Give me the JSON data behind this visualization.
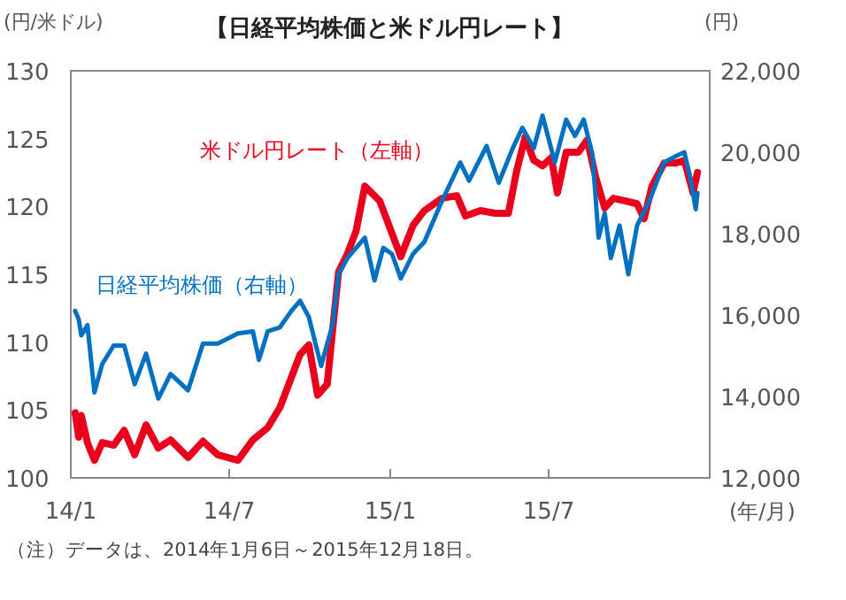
{
  "chart_data": {
    "type": "line",
    "title": "【日経平均株価と米ドル円レート】",
    "ylabel": "(円/米ドル)",
    "y2label": "(円)",
    "xlabel": "(年/月)",
    "xlim": [
      "2014-01-01",
      "2016-01-01"
    ],
    "xticks": [
      {
        "value": "2014-01-01",
        "label": "14/1"
      },
      {
        "value": "2014-07-01",
        "label": "14/7"
      },
      {
        "value": "2015-01-01",
        "label": "15/1"
      },
      {
        "value": "2015-07-01",
        "label": "15/7"
      }
    ],
    "ylim": [
      100,
      130
    ],
    "yticks": [
      100,
      105,
      110,
      115,
      120,
      125,
      130
    ],
    "y2lim": [
      12000,
      22000
    ],
    "y2ticks": [
      {
        "value": 12000,
        "label": "12,000"
      },
      {
        "value": 14000,
        "label": "14,000"
      },
      {
        "value": 16000,
        "label": "16,000"
      },
      {
        "value": 18000,
        "label": "18,000"
      },
      {
        "value": 20000,
        "label": "20,000"
      },
      {
        "value": 22000,
        "label": "22,000"
      }
    ],
    "legend": false,
    "grid": false,
    "annotations": [
      "（注）データは、2014年1月6日～2015年12月18日。"
    ],
    "series": [
      {
        "name": "米ドル円レート（左軸）",
        "color": "#e8001c",
        "axis": "y",
        "x": [
          "2014-01-06",
          "2014-01-10",
          "2014-01-13",
          "2014-01-20",
          "2014-01-28",
          "2014-02-06",
          "2014-02-19",
          "2014-03-03",
          "2014-03-15",
          "2014-03-28",
          "2014-04-11",
          "2014-04-25",
          "2014-05-15",
          "2014-06-01",
          "2014-06-18",
          "2014-07-11",
          "2014-07-28",
          "2014-08-14",
          "2014-08-28",
          "2014-09-10",
          "2014-09-20",
          "2014-09-30",
          "2014-10-10",
          "2014-10-21",
          "2014-10-27",
          "2014-11-03",
          "2014-11-13",
          "2014-11-23",
          "2014-12-03",
          "2014-12-20",
          "2015-01-13",
          "2015-01-27",
          "2015-02-09",
          "2015-03-01",
          "2015-03-18",
          "2015-03-28",
          "2015-04-14",
          "2015-05-01",
          "2015-05-16",
          "2015-05-25",
          "2015-06-04",
          "2015-06-14",
          "2015-06-24",
          "2015-07-04",
          "2015-07-11",
          "2015-07-21",
          "2015-08-04",
          "2015-08-14",
          "2015-08-24",
          "2015-09-03",
          "2015-09-13",
          "2015-09-27",
          "2015-10-10",
          "2015-10-18",
          "2015-10-27",
          "2015-11-10",
          "2015-11-23",
          "2015-12-03",
          "2015-12-13",
          "2015-12-18"
        ],
        "values": [
          104.8,
          103.0,
          104.6,
          102.6,
          101.3,
          102.6,
          102.4,
          103.5,
          101.7,
          103.9,
          102.2,
          102.8,
          101.5,
          102.7,
          101.7,
          101.3,
          102.8,
          103.7,
          105.2,
          107.4,
          109.1,
          109.8,
          106.1,
          106.9,
          110.8,
          115.2,
          116.5,
          118.2,
          121.5,
          120.4,
          116.3,
          118.6,
          119.7,
          120.6,
          120.8,
          119.3,
          119.7,
          119.5,
          119.5,
          122.5,
          125.1,
          123.4,
          123.0,
          123.6,
          121.0,
          124.0,
          124.0,
          124.9,
          122.1,
          119.9,
          120.6,
          120.4,
          120.2,
          119.1,
          121.5,
          123.2,
          123.2,
          123.4,
          121.0,
          122.5
        ]
      },
      {
        "name": "日経平均株価（右軸）",
        "color": "#0070c0",
        "axis": "y2",
        "x": [
          "2014-01-06",
          "2014-01-10",
          "2014-01-13",
          "2014-01-20",
          "2014-01-28",
          "2014-02-06",
          "2014-02-19",
          "2014-03-03",
          "2014-03-15",
          "2014-03-28",
          "2014-04-11",
          "2014-04-25",
          "2014-05-15",
          "2014-06-01",
          "2014-06-18",
          "2014-07-11",
          "2014-07-28",
          "2014-08-04",
          "2014-08-14",
          "2014-08-28",
          "2014-09-10",
          "2014-09-20",
          "2014-09-30",
          "2014-10-14",
          "2014-10-21",
          "2014-10-27",
          "2014-11-03",
          "2014-11-13",
          "2014-11-23",
          "2014-12-03",
          "2014-12-14",
          "2014-12-24",
          "2015-01-03",
          "2015-01-13",
          "2015-01-27",
          "2015-02-09",
          "2015-03-01",
          "2015-03-22",
          "2015-04-01",
          "2015-04-21",
          "2015-05-05",
          "2015-05-21",
          "2015-06-01",
          "2015-06-14",
          "2015-06-24",
          "2015-07-08",
          "2015-07-21",
          "2015-07-31",
          "2015-08-10",
          "2015-08-20",
          "2015-08-27",
          "2015-09-03",
          "2015-09-10",
          "2015-09-20",
          "2015-09-30",
          "2015-10-10",
          "2015-10-24",
          "2015-11-10",
          "2015-11-23",
          "2015-12-03",
          "2015-12-10",
          "2015-12-16",
          "2015-12-18"
        ],
        "values": [
          16100,
          15900,
          15500,
          15750,
          14100,
          14800,
          15250,
          15250,
          14300,
          15050,
          13950,
          14550,
          14150,
          15300,
          15300,
          15550,
          15600,
          14900,
          15600,
          15700,
          16100,
          16350,
          15950,
          14750,
          15300,
          15750,
          17000,
          17400,
          17650,
          17900,
          16850,
          17650,
          17500,
          16900,
          17500,
          17800,
          18800,
          19750,
          19300,
          20150,
          19250,
          20100,
          20600,
          20100,
          20900,
          19750,
          20800,
          20400,
          20800,
          19950,
          17900,
          18500,
          17400,
          18200,
          17000,
          18200,
          18800,
          19750,
          19900,
          20000,
          19350,
          18600,
          19000
        ]
      }
    ]
  }
}
